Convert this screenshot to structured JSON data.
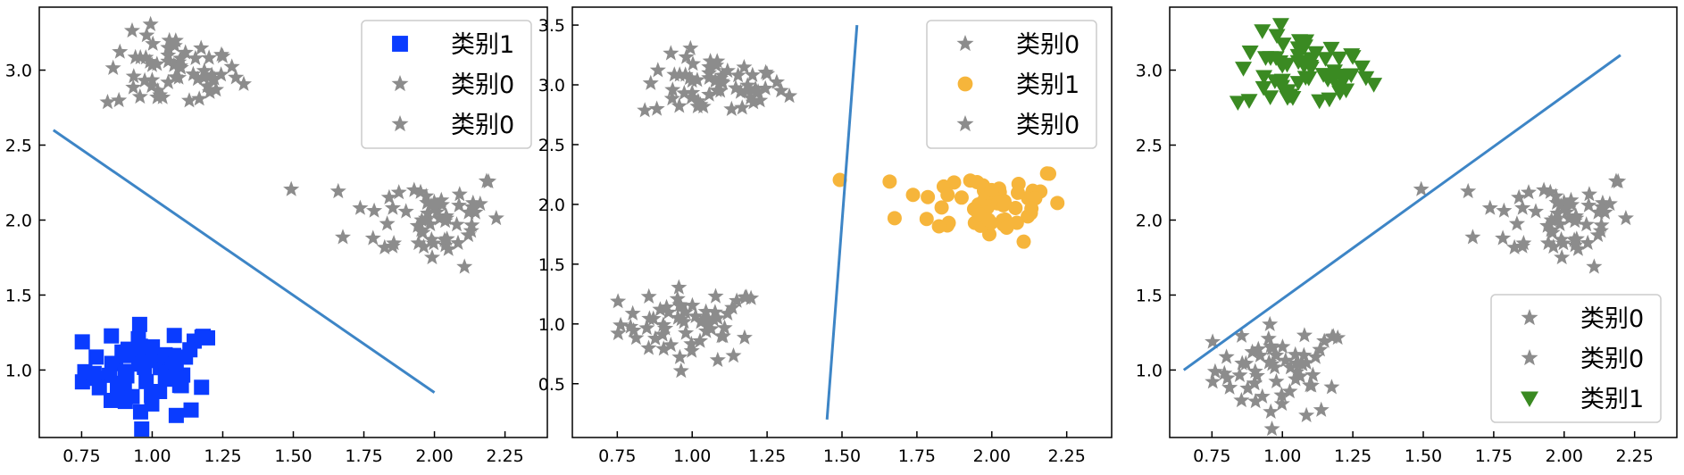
{
  "chart_data": [
    {
      "type": "scatter",
      "xlim": [
        0.6,
        2.4
      ],
      "ylim": [
        0.55,
        3.42
      ],
      "xticks": [
        "0.75",
        "1.00",
        "1.25",
        "1.50",
        "1.75",
        "2.00",
        "2.25"
      ],
      "yticks": [
        "1.0",
        "1.5",
        "2.0",
        "2.5",
        "3.0"
      ],
      "legend_position": "top-right",
      "clusters": [
        {
          "center": [
            1.0,
            1.0
          ],
          "spread": [
            0.12,
            0.15
          ],
          "n": 60,
          "series": 0
        },
        {
          "center": [
            1.07,
            2.98
          ],
          "spread": [
            0.12,
            0.13
          ],
          "n": 60,
          "series": 1
        },
        {
          "center": [
            1.98,
            2.02
          ],
          "spread": [
            0.14,
            0.16
          ],
          "n": 60,
          "series": 2
        }
      ],
      "series": [
        {
          "name": "类别1",
          "marker": "square",
          "color": "#0a3cff"
        },
        {
          "name": "类别0",
          "marker": "star",
          "color": "#8c8c8c"
        },
        {
          "name": "类别0",
          "marker": "star",
          "color": "#8c8c8c"
        }
      ],
      "line": {
        "x": [
          0.65,
          2.0
        ],
        "y": [
          2.6,
          0.85
        ],
        "color": "#3d85c6"
      }
    },
    {
      "type": "scatter",
      "xlim": [
        0.6,
        2.4
      ],
      "ylim": [
        0.05,
        3.65
      ],
      "xticks": [
        "0.75",
        "1.00",
        "1.25",
        "1.50",
        "1.75",
        "2.00",
        "2.25"
      ],
      "yticks": [
        "0.5",
        "1.0",
        "1.5",
        "2.0",
        "2.5",
        "3.0",
        "3.5"
      ],
      "legend_position": "top-right",
      "clusters": [
        {
          "center": [
            1.07,
            2.98
          ],
          "spread": [
            0.12,
            0.13
          ],
          "n": 60,
          "series": 0
        },
        {
          "center": [
            1.98,
            2.02
          ],
          "spread": [
            0.14,
            0.16
          ],
          "n": 60,
          "series": 1
        },
        {
          "center": [
            1.0,
            1.0
          ],
          "spread": [
            0.12,
            0.15
          ],
          "n": 60,
          "series": 2
        }
      ],
      "series": [
        {
          "name": "类别0",
          "marker": "star",
          "color": "#8c8c8c"
        },
        {
          "name": "类别1",
          "marker": "circle",
          "color": "#f6b53b"
        },
        {
          "name": "类别0",
          "marker": "star",
          "color": "#8c8c8c"
        }
      ],
      "line": {
        "x": [
          1.45,
          1.55
        ],
        "y": [
          0.2,
          3.5
        ],
        "color": "#3d85c6"
      }
    },
    {
      "type": "scatter",
      "xlim": [
        0.6,
        2.4
      ],
      "ylim": [
        0.55,
        3.42
      ],
      "xticks": [
        "0.75",
        "1.00",
        "1.25",
        "1.50",
        "1.75",
        "2.00",
        "2.25"
      ],
      "yticks": [
        "1.0",
        "1.5",
        "2.0",
        "2.5",
        "3.0"
      ],
      "legend_position": "bottom-right",
      "clusters": [
        {
          "center": [
            1.98,
            2.02
          ],
          "spread": [
            0.14,
            0.16
          ],
          "n": 60,
          "series": 0
        },
        {
          "center": [
            1.0,
            1.0
          ],
          "spread": [
            0.12,
            0.15
          ],
          "n": 60,
          "series": 1
        },
        {
          "center": [
            1.07,
            2.98
          ],
          "spread": [
            0.12,
            0.13
          ],
          "n": 60,
          "series": 2
        }
      ],
      "series": [
        {
          "name": "类别0",
          "marker": "star",
          "color": "#8c8c8c"
        },
        {
          "name": "类别0",
          "marker": "star",
          "color": "#8c8c8c"
        },
        {
          "name": "类别1",
          "marker": "triangle-down",
          "color": "#3a8a22"
        }
      ],
      "line": {
        "x": [
          0.65,
          2.2
        ],
        "y": [
          1.0,
          3.1
        ],
        "color": "#3d85c6"
      }
    }
  ]
}
